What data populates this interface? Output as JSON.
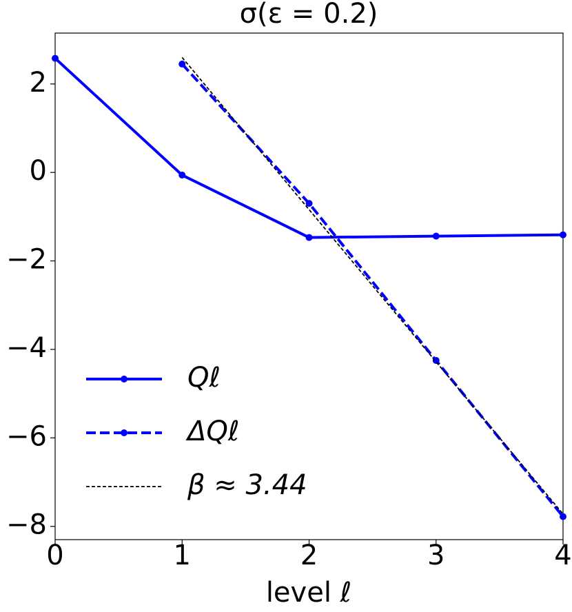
{
  "chart_data": {
    "type": "line",
    "title": "σ(ε = 0.2)",
    "x_label": "level ℓ",
    "xlim": [
      0,
      4
    ],
    "xticks": [
      0,
      1,
      2,
      3,
      4
    ],
    "ylim": [
      -8.3,
      3.15
    ],
    "yticks": [
      {
        "value": -8,
        "label": "−8"
      },
      {
        "value": -6,
        "label": "−6"
      },
      {
        "value": -4,
        "label": "−4"
      },
      {
        "value": -2,
        "label": "−2"
      },
      0,
      2
    ],
    "legend": "lower left",
    "series": [
      {
        "name": "Qℓ",
        "color": "#0000ff",
        "linestyle": "solid",
        "marker": true,
        "x": [
          0,
          1,
          2,
          3,
          4
        ],
        "values": [
          2.58,
          -0.06,
          -1.47,
          -1.44,
          -1.41
        ]
      },
      {
        "name": "ΔQℓ",
        "color": "#0000ff",
        "linestyle": "dashed",
        "marker": true,
        "x": [
          1,
          2,
          3,
          4
        ],
        "values": [
          2.45,
          -0.7,
          -4.25,
          -7.78
        ]
      },
      {
        "name": "β ≈ 3.44",
        "color": "#000000",
        "linestyle": "dotted",
        "marker": false,
        "x": [
          1,
          4
        ],
        "values": [
          2.6,
          -7.72
        ]
      }
    ]
  }
}
